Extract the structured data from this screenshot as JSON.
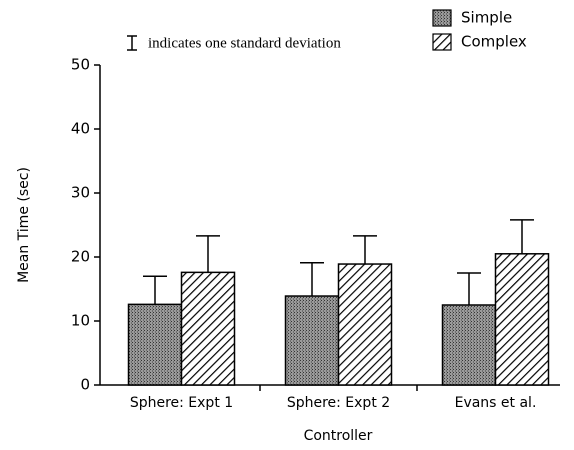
{
  "chart_data": {
    "type": "bar",
    "annotation": "indicates one standard deviation",
    "xlabel": "Controller",
    "ylabel": "Mean Time (sec)",
    "categories": [
      "Sphere: Expt 1",
      "Sphere: Expt 2",
      "Evans et al."
    ],
    "series": [
      {
        "name": "Simple",
        "color": "#7a7a7a",
        "pattern": "stipple",
        "values": [
          12.6,
          13.9,
          12.5
        ],
        "errors": [
          4.4,
          5.2,
          5.0
        ]
      },
      {
        "name": "Complex",
        "color": "#000000",
        "pattern": "hatch",
        "values": [
          17.6,
          18.9,
          20.5
        ],
        "errors": [
          5.7,
          4.4,
          5.3
        ]
      }
    ],
    "ylim": [
      0,
      50
    ],
    "yticks": [
      0,
      10,
      20,
      30,
      40,
      50
    ],
    "legend": "upper right"
  }
}
